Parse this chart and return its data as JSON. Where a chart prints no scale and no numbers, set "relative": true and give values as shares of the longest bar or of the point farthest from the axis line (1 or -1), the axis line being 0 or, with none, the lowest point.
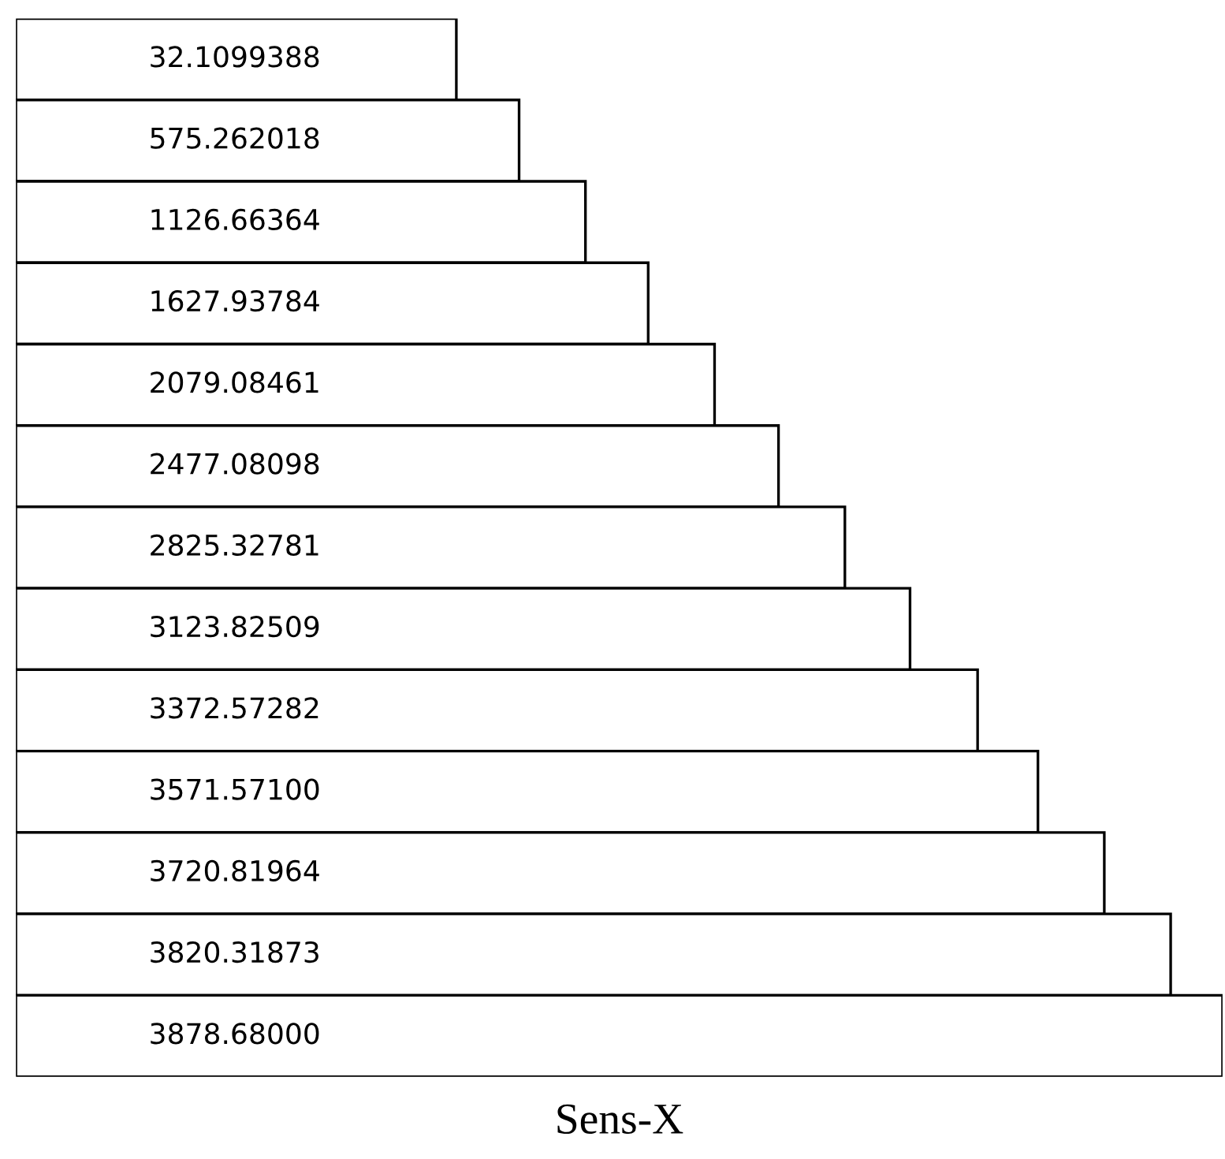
{
  "chart_data": {
    "type": "bar",
    "orientation": "horizontal",
    "relative": true,
    "xlabel": "Sens-X",
    "color": "#ffffff",
    "categories": [
      "32.1099388",
      "575.262018",
      "1126.66364",
      "1627.93784",
      "2079.08461",
      "2477.08098",
      "2825.32781",
      "3123.82509",
      "3372.57282",
      "3571.57100",
      "3720.81964",
      "3820.31873",
      "3878.68000"
    ],
    "values": [
      0.365,
      0.417,
      0.472,
      0.524,
      0.579,
      0.632,
      0.687,
      0.741,
      0.797,
      0.847,
      0.902,
      0.957,
      1
    ]
  }
}
